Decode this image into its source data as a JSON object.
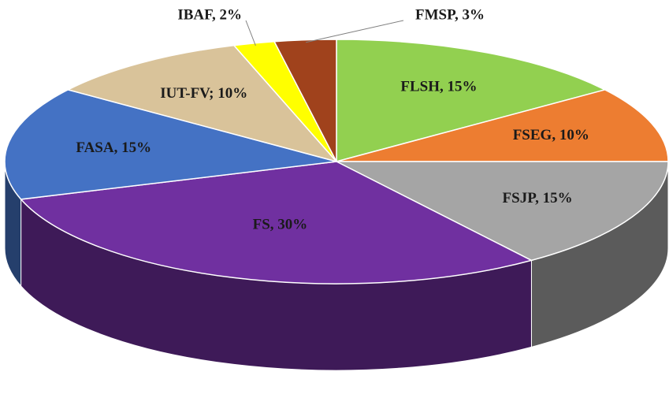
{
  "chart_data": {
    "type": "pie3d",
    "values": [
      15,
      10,
      15,
      30,
      15,
      10,
      2,
      3
    ],
    "value_labels": [
      "FLSH, 15%",
      "FSEG, 10%",
      "FSJP, 15%",
      "FS, 30%",
      "FASA, 15%",
      "IUT-FV; 10%",
      "IBAF, 2%",
      "FMSP, 3%"
    ],
    "colors": [
      "#92d050",
      "#ed7d31",
      "#a5a5a5",
      "#7030a0",
      "#4472c4",
      "#d9c39a",
      "#ffff00",
      "#a0421c"
    ]
  }
}
